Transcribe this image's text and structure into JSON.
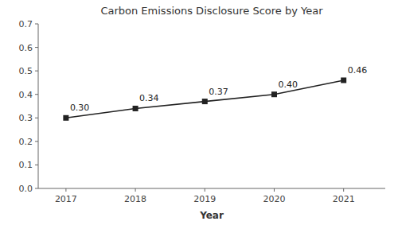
{
  "chart_data": {
    "type": "line",
    "title": "Carbon Emissions Disclosure Score by Year",
    "xlabel": "Year",
    "x": [
      2017,
      2018,
      2019,
      2020,
      2021
    ],
    "values": [
      0.3,
      0.34,
      0.37,
      0.4,
      0.46
    ],
    "data_labels": true,
    "value_labels": [
      "0.30",
      "0.34",
      "0.37",
      "0.40",
      "0.46"
    ],
    "xlim": [
      2016.6,
      2021.6
    ],
    "xticks": [
      2017,
      2018,
      2019,
      2020,
      2021
    ],
    "ylim": [
      0.0,
      0.7
    ],
    "yticks": [
      {
        "value": 0.0,
        "label": "0.0"
      },
      0.1,
      0.2,
      0.3,
      0.4,
      0.5,
      0.6,
      0.7
    ],
    "color": "#222222",
    "marker": "square",
    "grid": false
  }
}
